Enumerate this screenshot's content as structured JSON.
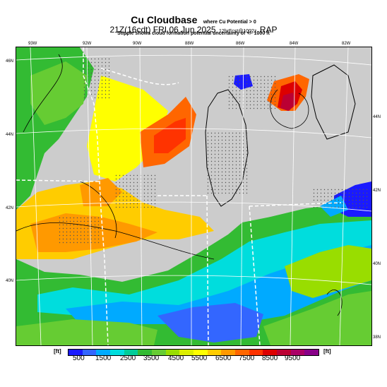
{
  "header": {
    "title": "Cu Cloudbase",
    "title_note": "where Cu Potential > 0",
    "valid_time": "21Z(16cdt) FRI 06 Jun 2025",
    "run_info": "12hrFcst@1002z",
    "model": "RAP",
    "subtitle": "Stipple shows cloud formation potential uncertainty of +/- 1000 ft"
  },
  "map": {
    "region": "Upper Midwest / Great Lakes",
    "background_color": "#cccccc",
    "lon_labels": [
      "93W",
      "92W",
      "90W",
      "88W",
      "86W",
      "84W",
      "82W"
    ],
    "lat_labels_left": [
      "46N",
      "44N",
      "42N",
      "40N"
    ],
    "lat_labels_right": [
      "44N",
      "42N",
      "40N",
      "38N"
    ]
  },
  "legend": {
    "unit_left": "[ft]",
    "unit_right": "[ft]",
    "colors": [
      "#1a1aff",
      "#3366ff",
      "#00aaff",
      "#00dddd",
      "#00cc99",
      "#33bb33",
      "#66cc33",
      "#99dd00",
      "#ddee00",
      "#ffff00",
      "#ffcc00",
      "#ff9900",
      "#ff6600",
      "#ff3300",
      "#dd0000",
      "#bb0033",
      "#aa0066",
      "#880088"
    ],
    "tick_labels": [
      "500",
      "1500",
      "2500",
      "3500",
      "4500",
      "5500",
      "6500",
      "7500",
      "8500",
      "9500"
    ]
  }
}
